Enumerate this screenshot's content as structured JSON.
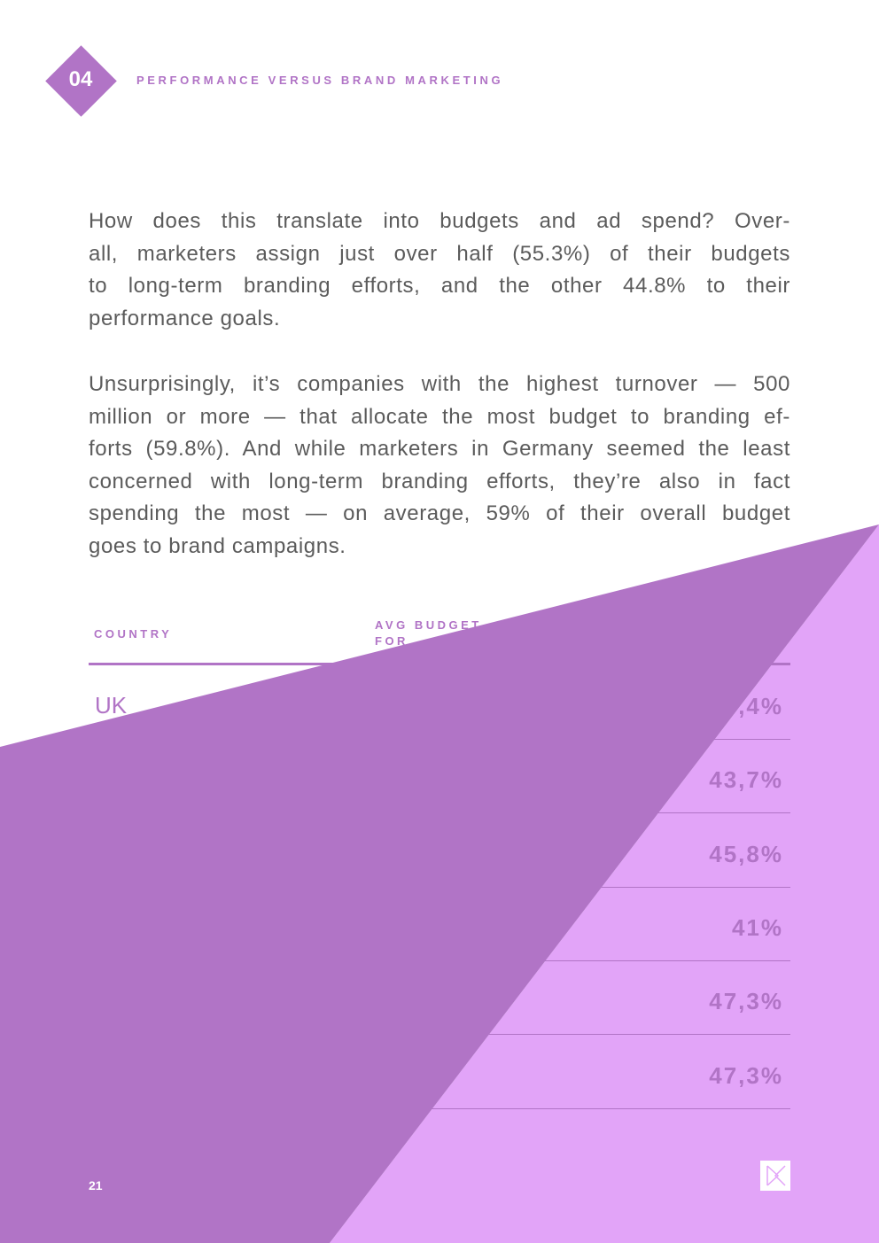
{
  "header": {
    "section_number": "04",
    "section_title": "PERFORMANCE VERSUS BRAND MARKETING"
  },
  "paragraphs": [
    [
      "How does this translate into budgets and ad spend? Over-",
      "all, marketers assign just over half (55.3%) of their budgets",
      "to long-term branding efforts, and the other 44.8% to their",
      "performance goals."
    ],
    [
      "Unsurprisingly, it’s companies with the highest turnover — 500",
      "million or more — that allocate the most budget to branding ef-",
      "forts (59.8%). And while marketers in Germany seemed the least",
      "concerned with long-term branding efforts, they’re also in fact",
      "spending the most — on average, 59% of their overall budget",
      "goes to brand campaigns."
    ]
  ],
  "table": {
    "headers": {
      "country": "COUNTRY",
      "budget": [
        "AVG BUDGET",
        "FOR"
      ]
    },
    "rows": [
      {
        "country": "UK",
        "value": ",4%"
      },
      {
        "value": "43,7%"
      },
      {
        "value": "45,8%"
      },
      {
        "value": "41%"
      },
      {
        "value": "47,3%"
      },
      {
        "value": "47,3%"
      }
    ]
  },
  "footer": {
    "page_number": "21"
  }
}
